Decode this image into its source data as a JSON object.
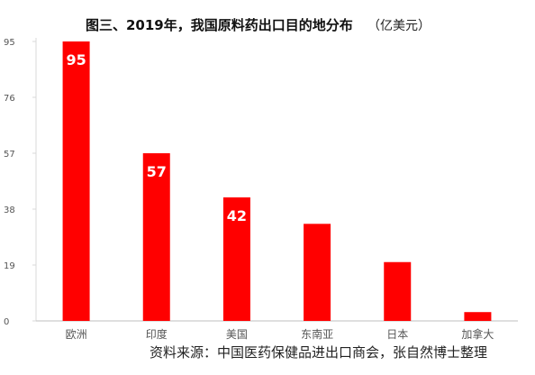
{
  "chart_data": {
    "type": "bar",
    "title": "图三、2019年，我国原料药出口目的地分布",
    "unit": "（亿美元）",
    "categories": [
      "欧洲",
      "印度",
      "美国",
      "东南亚",
      "日本",
      "加拿大"
    ],
    "values": [
      95,
      57,
      42,
      33,
      20,
      3
    ],
    "data_labels": [
      "95",
      "57",
      "42",
      "",
      "",
      ""
    ],
    "yticks": [
      "0",
      "19",
      "38",
      "57",
      "76",
      "95"
    ],
    "ylim": [
      0,
      95
    ],
    "xlabel": "",
    "ylabel": "",
    "grid": false,
    "legend": "none",
    "bar_color": "#ff0000",
    "label_color": "#ffffff",
    "axis_text_color": "#555555",
    "tick_values": [
      0,
      19,
      38,
      57,
      76,
      95
    ],
    "source": "资料来源：中国医药保健品进出口商会，张自然博士整理"
  }
}
